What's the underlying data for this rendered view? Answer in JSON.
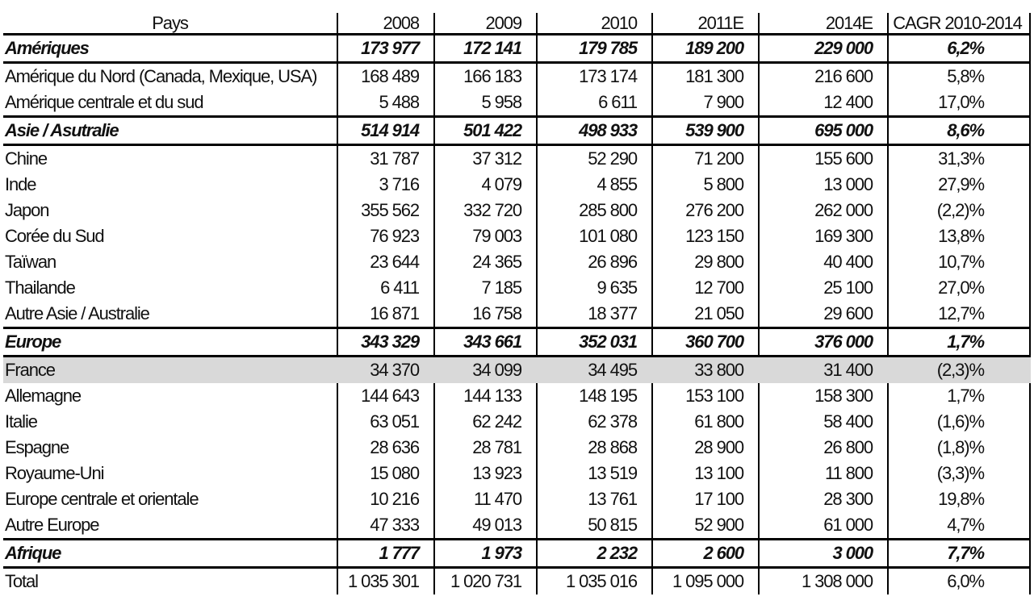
{
  "header": {
    "pays": "Pays",
    "y2008": "2008",
    "y2009": "2009",
    "y2010": "2010",
    "y2011": "2011E",
    "y2014": "2014E",
    "cagr": "CAGR 2010-2014"
  },
  "highlight_color": "#d9d9d9",
  "rows": [
    {
      "type": "group",
      "name": "Amériques",
      "v": [
        "173 977",
        "172 141",
        "179 785",
        "189 200",
        "229 000"
      ],
      "cagr": "6,2%"
    },
    {
      "type": "item",
      "name": "Amérique du Nord (Canada, Mexique, USA)",
      "v": [
        "168 489",
        "166 183",
        "173 174",
        "181 300",
        "216 600"
      ],
      "cagr": "5,8%"
    },
    {
      "type": "item",
      "name": "Amérique centrale et du sud",
      "v": [
        "5 488",
        "5 958",
        "6 611",
        "7 900",
        "12 400"
      ],
      "cagr": "17,0%"
    },
    {
      "type": "group",
      "name": "Asie / Asutralie",
      "v": [
        "514 914",
        "501 422",
        "498 933",
        "539 900",
        "695 000"
      ],
      "cagr": "8,6%"
    },
    {
      "type": "item",
      "name": "Chine",
      "v": [
        "31 787",
        "37 312",
        "52 290",
        "71 200",
        "155 600"
      ],
      "cagr": "31,3%"
    },
    {
      "type": "item",
      "name": "Inde",
      "v": [
        "3 716",
        "4 079",
        "4 855",
        "5 800",
        "13 000"
      ],
      "cagr": "27,9%"
    },
    {
      "type": "item",
      "name": "Japon",
      "v": [
        "355 562",
        "332 720",
        "285 800",
        "276 200",
        "262 000"
      ],
      "cagr": "(2,2)%"
    },
    {
      "type": "item",
      "name": "Corée du Sud",
      "v": [
        "76 923",
        "79 003",
        "101 080",
        "123 150",
        "169 300"
      ],
      "cagr": "13,8%"
    },
    {
      "type": "item",
      "name": "Taïwan",
      "v": [
        "23 644",
        "24 365",
        "26 896",
        "29 800",
        "40 400"
      ],
      "cagr": "10,7%"
    },
    {
      "type": "item",
      "name": "Thailande",
      "v": [
        "6 411",
        "7 185",
        "9 635",
        "12 700",
        "25 100"
      ],
      "cagr": "27,0%"
    },
    {
      "type": "item",
      "name": "Autre Asie / Australie",
      "v": [
        "16 871",
        "16 758",
        "18 377",
        "21 050",
        "29 600"
      ],
      "cagr": "12,7%"
    },
    {
      "type": "group",
      "name": "Europe",
      "v": [
        "343 329",
        "343 661",
        "352 031",
        "360 700",
        "376 000"
      ],
      "cagr": "1,7%"
    },
    {
      "type": "item",
      "highlight": true,
      "name": "France",
      "v": [
        "34 370",
        "34 099",
        "34 495",
        "33 800",
        "31 400"
      ],
      "cagr": "(2,3)%"
    },
    {
      "type": "item",
      "name": "Allemagne",
      "v": [
        "144 643",
        "144 133",
        "148 195",
        "153 100",
        "158 300"
      ],
      "cagr": "1,7%"
    },
    {
      "type": "item",
      "name": "Italie",
      "v": [
        "63 051",
        "62 242",
        "62 378",
        "61 800",
        "58 400"
      ],
      "cagr": "(1,6)%"
    },
    {
      "type": "item",
      "name": "Espagne",
      "v": [
        "28 636",
        "28 781",
        "28 868",
        "28 900",
        "26 800"
      ],
      "cagr": "(1,8)%"
    },
    {
      "type": "item",
      "name": "Royaume-Uni",
      "v": [
        "15 080",
        "13 923",
        "13 519",
        "13 100",
        "11 800"
      ],
      "cagr": "(3,3)%"
    },
    {
      "type": "item",
      "name": "Europe centrale et orientale",
      "v": [
        "10 216",
        "11 470",
        "13 761",
        "17 100",
        "28 300"
      ],
      "cagr": "19,8%"
    },
    {
      "type": "item",
      "name": "Autre Europe",
      "v": [
        "47 333",
        "49 013",
        "50 815",
        "52 900",
        "61 000"
      ],
      "cagr": "4,7%"
    },
    {
      "type": "group",
      "name": "Afrique",
      "v": [
        "1 777",
        "1 973",
        "2 232",
        "2 600",
        "3 000"
      ],
      "cagr": "7,7%"
    },
    {
      "type": "total",
      "name": "Total",
      "v": [
        "1 035 301",
        "1 020 731",
        "1 035 016",
        "1 095 000",
        "1 308 000"
      ],
      "cagr": "6,0%"
    }
  ]
}
